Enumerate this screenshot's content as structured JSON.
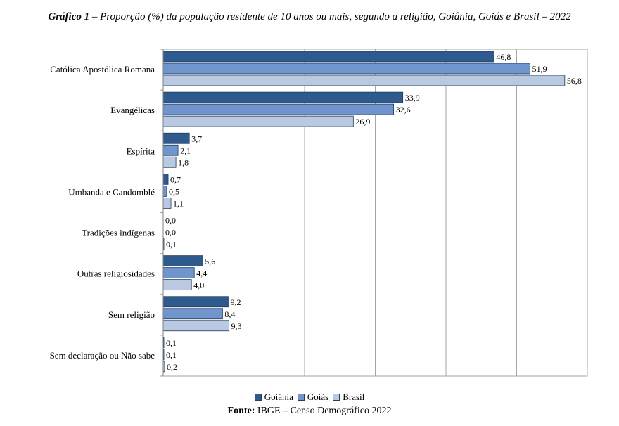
{
  "title": {
    "prefix": "Gráfico 1",
    "text": " – Proporção (%) da população residente de 10 anos ou mais, segundo a religião, Goiânia, Goiás e Brasil – 2022"
  },
  "source": {
    "label": "Fonte:",
    "text": " IBGE – Censo Demográfico 2022"
  },
  "chart_data": {
    "type": "bar",
    "orientation": "horizontal",
    "categories": [
      "Católica Apostólica Romana",
      "Evangélicas",
      "Espírita",
      "Umbanda e Candomblé",
      "Tradições indígenas",
      "Outras religiosidades",
      "Sem religião",
      "Sem declaração ou Não sabe"
    ],
    "series": [
      {
        "name": "Goiânia",
        "color": "#2e5a8e",
        "values": [
          46.8,
          33.9,
          3.7,
          0.7,
          0.0,
          5.6,
          9.2,
          0.1
        ],
        "labels": [
          "46,8",
          "33,9",
          "3,7",
          "0,7",
          "0,0",
          "5,6",
          "9,2",
          "0,1"
        ]
      },
      {
        "name": "Goiás",
        "color": "#7095cd",
        "values": [
          51.9,
          32.6,
          2.1,
          0.5,
          0.0,
          4.4,
          8.4,
          0.1
        ],
        "labels": [
          "51,9",
          "32,6",
          "2,1",
          "0,5",
          "0,0",
          "4,4",
          "8,4",
          "0,1"
        ]
      },
      {
        "name": "Brasil",
        "color": "#b8c9e1",
        "values": [
          56.8,
          26.9,
          1.8,
          1.1,
          0.1,
          4.0,
          9.3,
          0.2
        ],
        "labels": [
          "56,8",
          "26,9",
          "1,8",
          "1,1",
          "0,1",
          "4,0",
          "9,3",
          "0,2"
        ]
      }
    ],
    "xlim": [
      0,
      60
    ],
    "grid": true,
    "legend": "bottom"
  }
}
